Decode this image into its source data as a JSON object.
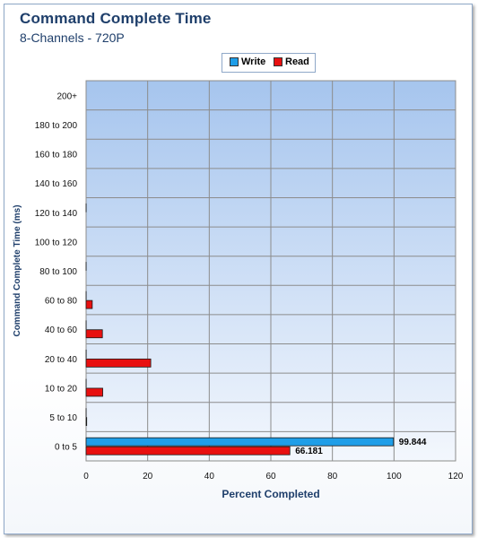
{
  "title": "Command  Complete Time",
  "subtitle": "8-Channels - 720P",
  "chart_data": {
    "type": "bar",
    "orientation": "horizontal",
    "categories": [
      "0 to 5",
      "5 to 10",
      "10 to 20",
      "20 to 40",
      "40 to 60",
      "60 to 80",
      "80 to 100",
      "100 to 120",
      "120 to 140",
      "140 to 160",
      "160 to 180",
      "180 to 200",
      "200+"
    ],
    "series": [
      {
        "name": "Write",
        "color": "#1f9ee8",
        "values": [
          99.844,
          0.02,
          0.03,
          0.04,
          0.03,
          0.03,
          0.02,
          0.0,
          0.02,
          0.0,
          0.0,
          0.0,
          0.0
        ]
      },
      {
        "name": "Read",
        "color": "#e81010",
        "values": [
          66.181,
          0.2,
          5.4,
          21.0,
          5.3,
          2.0,
          0.0,
          0.0,
          0.0,
          0.0,
          0.0,
          0.0,
          0.0
        ]
      }
    ],
    "data_labels": [
      {
        "category": "0 to 5",
        "series": "Write",
        "text": "99.844"
      },
      {
        "category": "0 to 5",
        "series": "Read",
        "text": "66.181"
      }
    ],
    "xlabel": "Percent Completed",
    "ylabel": "Command Complete Time  (ms)",
    "xlim": [
      0,
      120
    ],
    "xticks": [
      "0",
      "20",
      "40",
      "60",
      "80",
      "100",
      "120"
    ],
    "grid": true,
    "legend": "top-center"
  }
}
